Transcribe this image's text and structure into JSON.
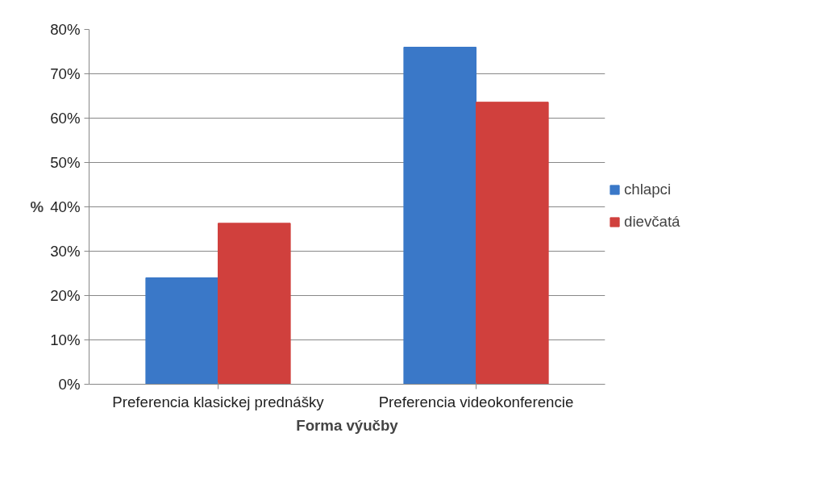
{
  "chart_data": {
    "type": "bar",
    "xlabel": "Forma výučby",
    "ylabel": "%",
    "categories": [
      "Preferencia klasickej prednášky",
      "Preferencia videokonferencie"
    ],
    "series": [
      {
        "name": "chlapci",
        "color": "#3a78c8",
        "values": [
          24,
          76
        ]
      },
      {
        "name": "dievčatá",
        "color": "#d0403d",
        "values": [
          36.3,
          63.6
        ]
      }
    ],
    "ylim": [
      0,
      80
    ],
    "yticks": [
      {
        "value": 0,
        "label": "0%"
      },
      {
        "value": 10,
        "label": "10%"
      },
      {
        "value": 20,
        "label": "20%"
      },
      {
        "value": 30,
        "label": "30%"
      },
      {
        "value": 40,
        "label": "40%"
      },
      {
        "value": 50,
        "label": "50%"
      },
      {
        "value": 60,
        "label": "60%"
      },
      {
        "value": 70,
        "label": "70%"
      },
      {
        "value": 80,
        "label": "80%"
      }
    ],
    "grid": "y",
    "legend": "right"
  }
}
